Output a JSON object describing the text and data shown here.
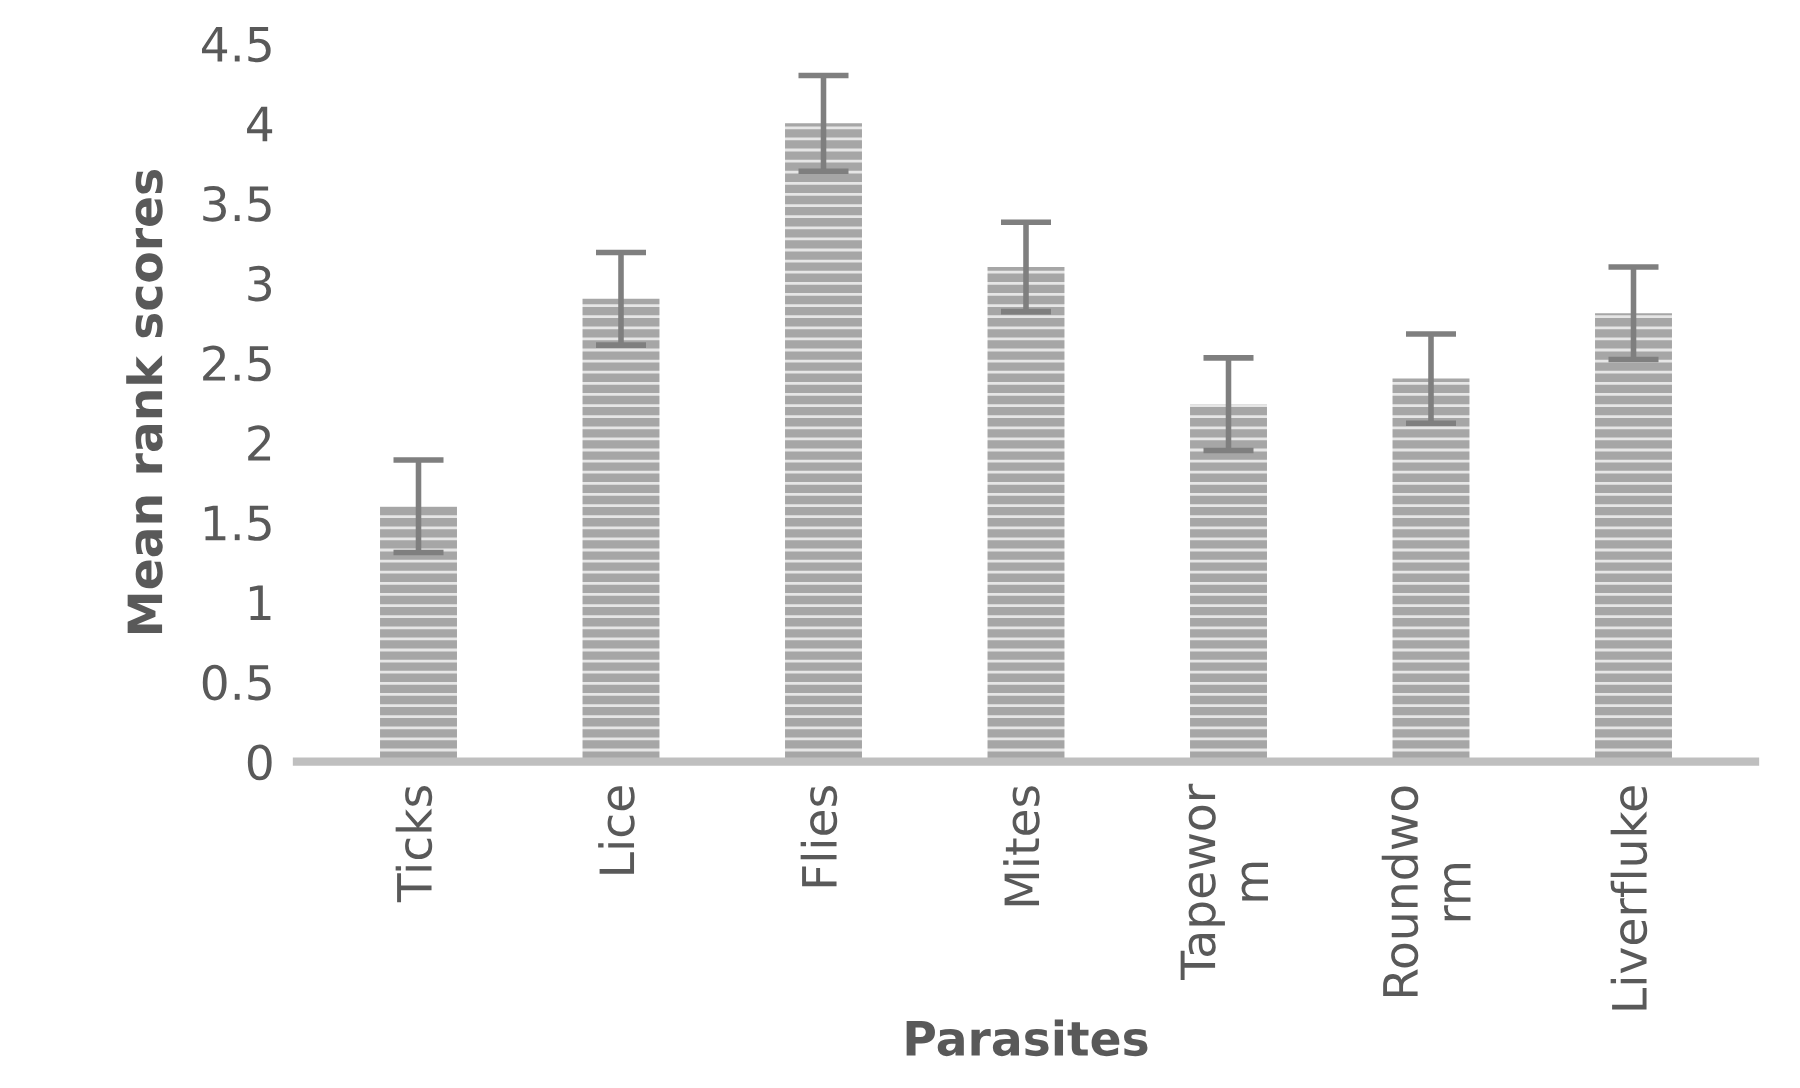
{
  "chart_data": {
    "type": "bar",
    "xlabel": "Parasites",
    "ylabel": "Mean rank scores",
    "categories": [
      "Ticks",
      "Lice",
      "Flies",
      "Mites",
      "Tapewor\nm",
      "Roundwo\nrm",
      "Liverfluke"
    ],
    "values": [
      1.6,
      2.9,
      4.0,
      3.1,
      2.24,
      2.4,
      2.81
    ],
    "errors": [
      0.29,
      0.29,
      0.3,
      0.28,
      0.29,
      0.28,
      0.29
    ],
    "color": "#a6a6a6",
    "ylim": [
      0,
      4.5
    ],
    "yticks": [
      0,
      0.5,
      1,
      1.5,
      2,
      2.5,
      3,
      3.5,
      4,
      4.5
    ],
    "grid": false
  }
}
